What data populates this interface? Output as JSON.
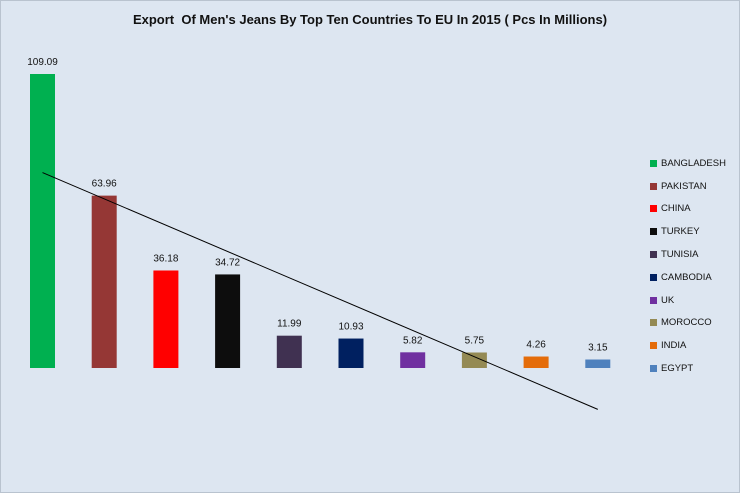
{
  "chart_data": {
    "type": "bar",
    "title": "Export  Of Men's Jeans By Top Ten Countries To EU In 2015 ( Pcs In Millions)",
    "categories": [
      "BANGLADESH",
      "PAKISTAN",
      "CHINA",
      "TURKEY",
      "TUNISIA",
      "CAMBODIA",
      "UK",
      "MOROCCO",
      "INDIA",
      "EGYPT"
    ],
    "values": [
      109.09,
      63.96,
      36.18,
      34.72,
      11.99,
      10.93,
      5.82,
      5.75,
      4.26,
      3.15
    ],
    "data_labels": [
      "109.09",
      "63.96",
      "36.18",
      "34.72",
      "11.99",
      "10.93",
      "5.82",
      "5.75",
      "4.26",
      "3.15"
    ],
    "colors": [
      "#00b050",
      "#953735",
      "#ff0000",
      "#0d0d0d",
      "#403151",
      "#002060",
      "#7030a0",
      "#948a54",
      "#e46c0a",
      "#4f81bd"
    ],
    "trendline": {
      "type": "linear",
      "color": "#000000"
    },
    "legend_position": "right",
    "grid": false,
    "xlabel": "",
    "ylabel": ""
  }
}
